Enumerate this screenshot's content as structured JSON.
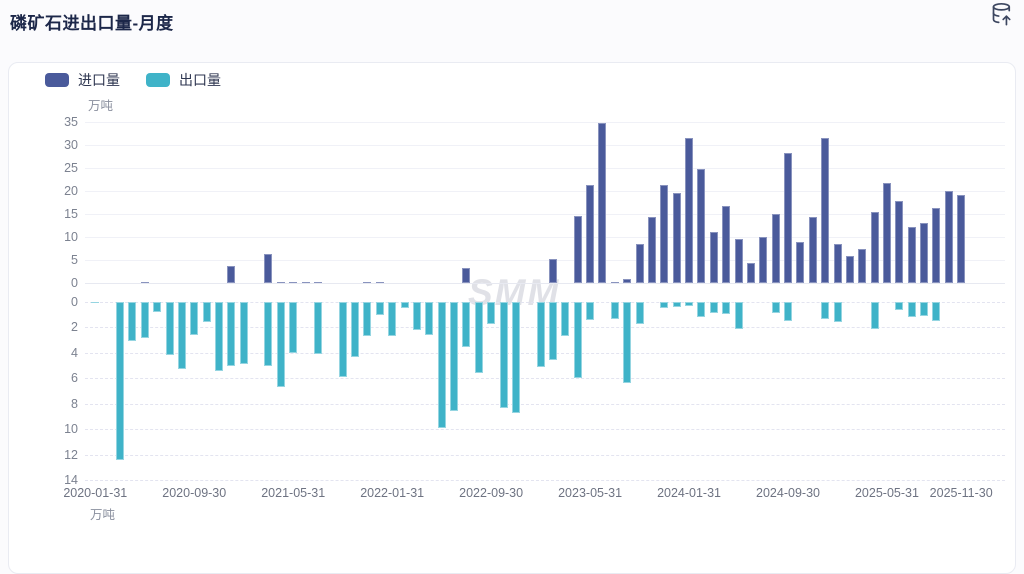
{
  "header": {
    "title": "磷矿石进出口量-月度"
  },
  "toolbar": {
    "export_icon": "database-export-icon"
  },
  "watermark": "SMM",
  "chart_data": {
    "type": "bar",
    "title": "磷矿石进出口量-月度",
    "unit": "万吨",
    "legend_position": "top-left",
    "grid": true,
    "categories": [
      "2020-01",
      "2020-02",
      "2020-03",
      "2020-04",
      "2020-05",
      "2020-06",
      "2020-07",
      "2020-08",
      "2020-09",
      "2020-10",
      "2020-11",
      "2020-12",
      "2021-01",
      "2021-02",
      "2021-03",
      "2021-04",
      "2021-05",
      "2021-06",
      "2021-07",
      "2021-08",
      "2021-09",
      "2021-10",
      "2021-11",
      "2021-12",
      "2022-01",
      "2022-02",
      "2022-03",
      "2022-04",
      "2022-05",
      "2022-06",
      "2022-07",
      "2022-08",
      "2022-09",
      "2022-10",
      "2022-11",
      "2022-12",
      "2023-01",
      "2023-02",
      "2023-03",
      "2023-04",
      "2023-05",
      "2023-06",
      "2023-07",
      "2023-08",
      "2023-09",
      "2023-10",
      "2023-11",
      "2023-12",
      "2024-01",
      "2024-02",
      "2024-03",
      "2024-04",
      "2024-05",
      "2024-06",
      "2024-07",
      "2024-08",
      "2024-09",
      "2024-10",
      "2024-11",
      "2024-12",
      "2025-01",
      "2025-02",
      "2025-03",
      "2025-04",
      "2025-05",
      "2025-06",
      "2025-07",
      "2025-08",
      "2025-09",
      "2025-10",
      "2025-11"
    ],
    "series": [
      {
        "name": "进口量",
        "color": "#4a5a9b",
        "direction": "up",
        "values": [
          0,
          0,
          0,
          0,
          0.1,
          0,
          0,
          0,
          0,
          0,
          0,
          3.8,
          0,
          0,
          6.4,
          0.3,
          0.1,
          0.1,
          0.1,
          0,
          0,
          0,
          0.15,
          0.15,
          0,
          0,
          0,
          0,
          0,
          0,
          3.2,
          0,
          0,
          0,
          0,
          0,
          0,
          5.2,
          0,
          14.5,
          21.3,
          34.7,
          0.2,
          0.8,
          8.5,
          14.4,
          21.4,
          19.5,
          31.5,
          24.8,
          11.1,
          16.8,
          9.6,
          4.3,
          10,
          15,
          28.3,
          8.9,
          14.3,
          31.6,
          8.5,
          5.8,
          7.4,
          15.4,
          21.8,
          17.8,
          12.1,
          13,
          16.2,
          20,
          19.1
        ]
      },
      {
        "name": "出口量",
        "color": "#3fb3c8",
        "direction": "down",
        "values": [
          0.1,
          0,
          12.4,
          3.1,
          2.8,
          0.8,
          4.2,
          5.3,
          2.6,
          1.6,
          5.4,
          5.0,
          4.9,
          0,
          5.0,
          6.7,
          4.0,
          0,
          4.1,
          0,
          5.9,
          4.3,
          2.7,
          1.0,
          2.7,
          0.5,
          2.2,
          2.6,
          9.9,
          8.6,
          3.5,
          5.6,
          1.7,
          8.3,
          8.7,
          0,
          5.1,
          4.6,
          2.7,
          6.0,
          1.4,
          0,
          1.3,
          6.4,
          1.7,
          0,
          0.5,
          0.4,
          0.35,
          1.2,
          0.9,
          0.95,
          2.1,
          0,
          0,
          0.9,
          1.5,
          0,
          0,
          1.3,
          1.6,
          0,
          0,
          2.15,
          0,
          0.6,
          1.15,
          1.1,
          1.5,
          0,
          0
        ]
      }
    ],
    "top_axis": {
      "min": 0,
      "max": 35,
      "ticks": [
        0,
        5,
        10,
        15,
        20,
        25,
        30,
        35
      ],
      "unit": "万吨"
    },
    "bottom_axis": {
      "min": 0,
      "max": 14,
      "ticks": [
        0,
        2,
        4,
        6,
        8,
        10,
        12,
        14
      ],
      "unit": "万吨",
      "inverted": true
    },
    "x_tick_labels": [
      "2020-01-31",
      "2020-09-30",
      "2021-05-31",
      "2022-01-31",
      "2022-09-30",
      "2023-05-31",
      "2024-01-31",
      "2024-09-30",
      "2025-05-31",
      "2025-11-30"
    ],
    "x_tick_month_indices": [
      0,
      8,
      16,
      24,
      32,
      40,
      48,
      56,
      64,
      70
    ]
  }
}
